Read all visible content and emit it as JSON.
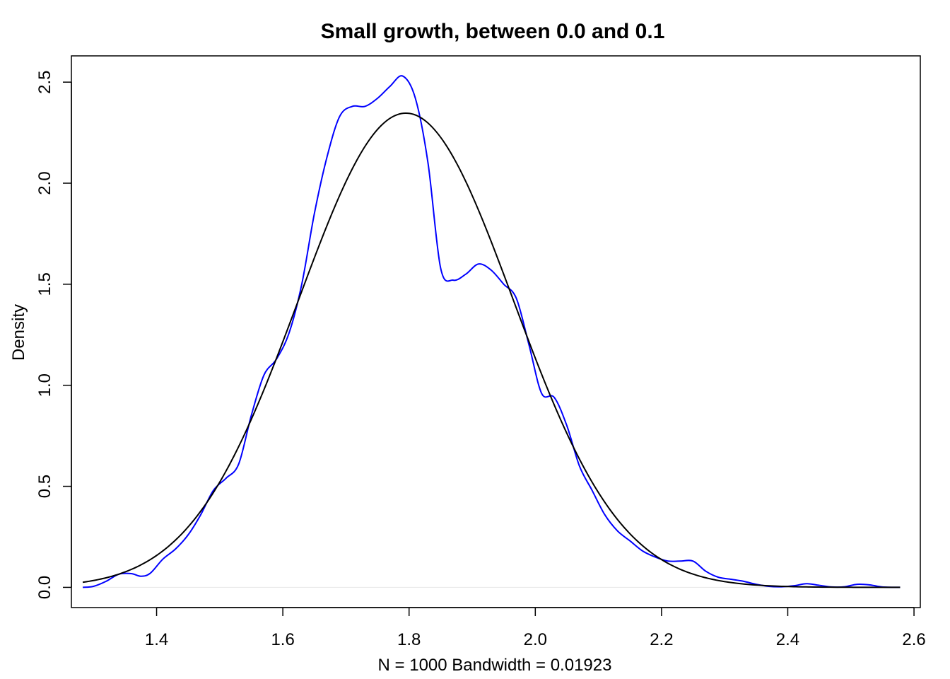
{
  "chart_data": {
    "type": "line",
    "title": "Small growth, between 0.0 and 0.1",
    "xlabel": "N = 1000   Bandwidth = 0.01923",
    "ylabel": "Density",
    "xlim": [
      1.265,
      2.61
    ],
    "ylim": [
      -0.1,
      2.63
    ],
    "x_ticks": [
      "1.4",
      "1.6",
      "1.8",
      "2.0",
      "2.2",
      "2.4",
      "2.6"
    ],
    "y_ticks": [
      "0.0",
      "0.5",
      "1.0",
      "1.5",
      "2.0",
      "2.5"
    ],
    "grid": false,
    "legend": "none",
    "zero_line_color": "#e6e6e6",
    "series": [
      {
        "color": "#0000ff",
        "points": [
          [
            1.283,
            0.0
          ],
          [
            1.3,
            0.005
          ],
          [
            1.32,
            0.03
          ],
          [
            1.34,
            0.065
          ],
          [
            1.36,
            0.068
          ],
          [
            1.375,
            0.055
          ],
          [
            1.39,
            0.07
          ],
          [
            1.41,
            0.14
          ],
          [
            1.43,
            0.19
          ],
          [
            1.45,
            0.26
          ],
          [
            1.47,
            0.36
          ],
          [
            1.49,
            0.48
          ],
          [
            1.51,
            0.54
          ],
          [
            1.53,
            0.61
          ],
          [
            1.55,
            0.85
          ],
          [
            1.57,
            1.05
          ],
          [
            1.59,
            1.13
          ],
          [
            1.61,
            1.26
          ],
          [
            1.63,
            1.5
          ],
          [
            1.65,
            1.85
          ],
          [
            1.67,
            2.13
          ],
          [
            1.69,
            2.33
          ],
          [
            1.71,
            2.38
          ],
          [
            1.73,
            2.38
          ],
          [
            1.75,
            2.42
          ],
          [
            1.77,
            2.48
          ],
          [
            1.79,
            2.53
          ],
          [
            1.81,
            2.42
          ],
          [
            1.83,
            2.1
          ],
          [
            1.85,
            1.58
          ],
          [
            1.87,
            1.52
          ],
          [
            1.89,
            1.55
          ],
          [
            1.91,
            1.6
          ],
          [
            1.93,
            1.57
          ],
          [
            1.95,
            1.5
          ],
          [
            1.97,
            1.43
          ],
          [
            1.99,
            1.2
          ],
          [
            2.01,
            0.96
          ],
          [
            2.03,
            0.94
          ],
          [
            2.05,
            0.8
          ],
          [
            2.07,
            0.6
          ],
          [
            2.09,
            0.48
          ],
          [
            2.11,
            0.36
          ],
          [
            2.13,
            0.28
          ],
          [
            2.15,
            0.23
          ],
          [
            2.17,
            0.18
          ],
          [
            2.19,
            0.15
          ],
          [
            2.21,
            0.13
          ],
          [
            2.23,
            0.13
          ],
          [
            2.25,
            0.13
          ],
          [
            2.27,
            0.08
          ],
          [
            2.29,
            0.05
          ],
          [
            2.31,
            0.04
          ],
          [
            2.33,
            0.03
          ],
          [
            2.35,
            0.015
          ],
          [
            2.37,
            0.005
          ],
          [
            2.39,
            0.003
          ],
          [
            2.41,
            0.008
          ],
          [
            2.43,
            0.018
          ],
          [
            2.45,
            0.01
          ],
          [
            2.47,
            0.002
          ],
          [
            2.49,
            0.003
          ],
          [
            2.51,
            0.015
          ],
          [
            2.53,
            0.012
          ],
          [
            2.55,
            0.002
          ],
          [
            2.578,
            0.0
          ]
        ]
      },
      {
        "color": "#000000",
        "normal_mean": 1.795,
        "normal_sd": 0.17,
        "x_range": [
          1.283,
          2.578
        ]
      }
    ]
  }
}
